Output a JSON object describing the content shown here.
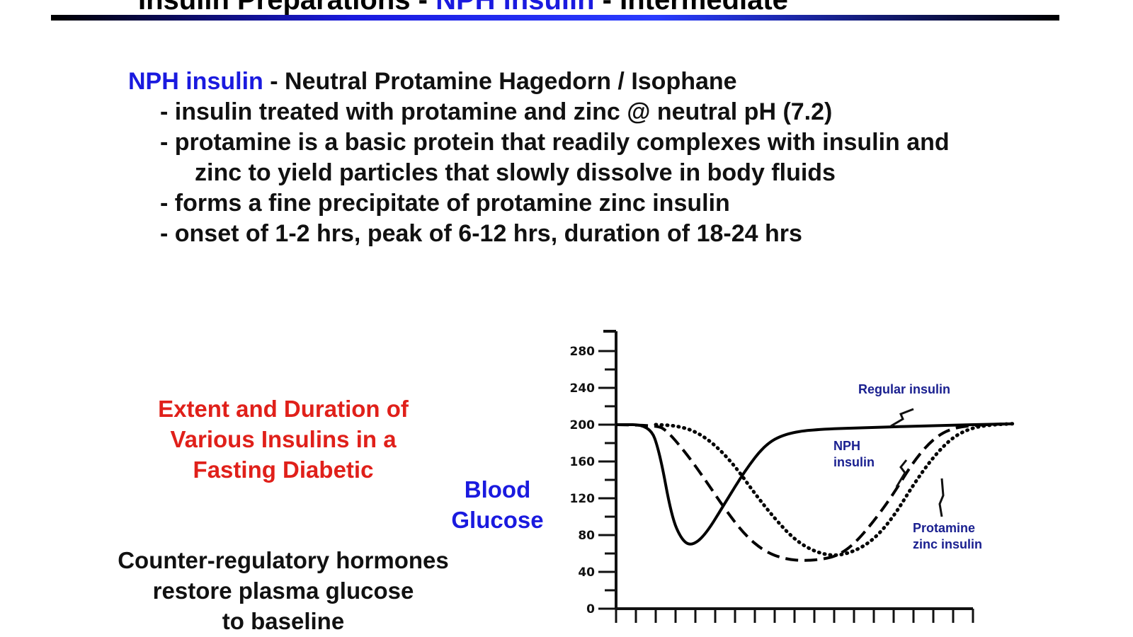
{
  "slide": {
    "title_prefix": "Insulin Preparations - ",
    "title_highlight": "NPH insulin",
    "title_suffix": " - Intermediate",
    "heading_term": "NPH insulin",
    "heading_rest": " - Neutral Protamine Hagedorn / Isophane",
    "bullets": [
      "- insulin treated with protamine and zinc @ neutral pH (7.2)",
      "- protamine is a basic protein that readily complexes with insulin and",
      "zinc to yield particles that slowly dissolve in body fluids",
      "- forms a fine precipitate of protamine zinc insulin",
      "- onset of 1-2 hrs, peak of 6-12 hrs, duration of 18-24 hrs"
    ],
    "chart_caption": [
      "Extent and Duration of",
      "Various Insulins in a",
      "Fasting Diabetic"
    ],
    "note": [
      "Counter-regulatory hormones",
      "restore plasma glucose",
      "to baseline"
    ]
  },
  "chart_data": {
    "type": "line",
    "ylabel": "Blood Glucose",
    "xlabel": "",
    "ylim": [
      0,
      300
    ],
    "yticks": [
      0,
      40,
      80,
      120,
      160,
      200,
      240,
      280
    ],
    "x_tick_count": 18,
    "colors": {
      "lines": "#000000",
      "labels": "#1a2090",
      "ylabel": "#1a1adf"
    },
    "series": [
      {
        "name": "Regular insulin",
        "style": "solid",
        "points": [
          [
            0,
            200
          ],
          [
            1.7,
            200
          ],
          [
            2.2,
            170
          ],
          [
            2.8,
            100
          ],
          [
            3.3,
            75
          ],
          [
            3.8,
            68
          ],
          [
            4.5,
            80
          ],
          [
            5.5,
            115
          ],
          [
            6.5,
            150
          ],
          [
            7.5,
            178
          ],
          [
            8.5,
            190
          ],
          [
            10,
            195
          ],
          [
            13,
            197
          ],
          [
            16,
            199
          ],
          [
            20,
            201
          ]
        ]
      },
      {
        "name": "NPH insulin",
        "style": "dashed",
        "points": [
          [
            0,
            200
          ],
          [
            2,
            199
          ],
          [
            2.5,
            195
          ],
          [
            3.5,
            170
          ],
          [
            4.5,
            140
          ],
          [
            5.5,
            108
          ],
          [
            6.5,
            80
          ],
          [
            7.5,
            62
          ],
          [
            8.5,
            54
          ],
          [
            9.5,
            52
          ],
          [
            10.5,
            54
          ],
          [
            11.2,
            58
          ],
          [
            12,
            70
          ],
          [
            13,
            95
          ],
          [
            14,
            125
          ],
          [
            15,
            160
          ],
          [
            16,
            185
          ],
          [
            17,
            197
          ],
          [
            18.5,
            200
          ],
          [
            20,
            201
          ]
        ]
      },
      {
        "name": "Protamine zinc insulin",
        "style": "dotted",
        "points": [
          [
            2,
            200
          ],
          [
            3,
            199
          ],
          [
            4,
            193
          ],
          [
            5,
            178
          ],
          [
            6,
            155
          ],
          [
            7,
            125
          ],
          [
            8,
            98
          ],
          [
            9,
            75
          ],
          [
            10,
            62
          ],
          [
            11,
            57
          ],
          [
            12,
            62
          ],
          [
            13,
            75
          ],
          [
            14,
            100
          ],
          [
            15,
            135
          ],
          [
            16,
            165
          ],
          [
            17,
            187
          ],
          [
            18,
            197
          ],
          [
            19,
            200
          ],
          [
            20,
            201
          ]
        ]
      }
    ],
    "annotations": [
      {
        "series": "Regular insulin",
        "lines": [
          "Regular insulin"
        ]
      },
      {
        "series": "NPH insulin",
        "lines": [
          "NPH",
          "insulin"
        ]
      },
      {
        "series": "Protamine zinc insulin",
        "lines": [
          "Protamine",
          "zinc insulin"
        ]
      }
    ]
  }
}
